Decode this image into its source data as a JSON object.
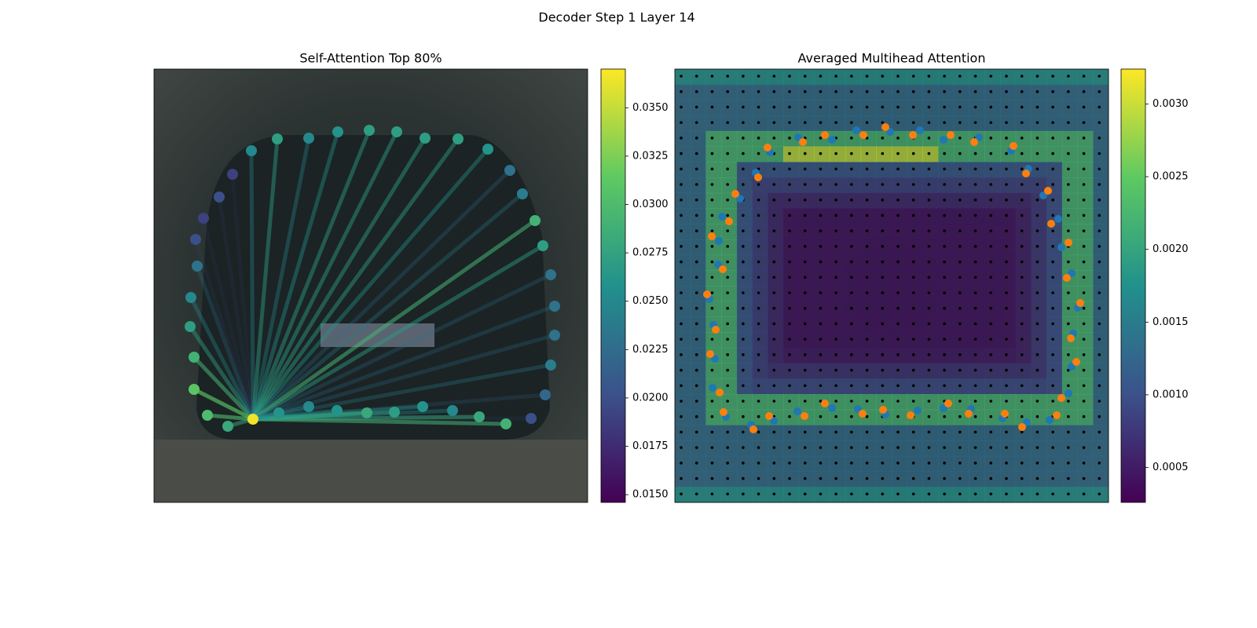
{
  "title": "Decoder Step 1 Layer 14",
  "chart_data": [
    {
      "type": "attention-graph",
      "title": "Self-Attention Top 80%",
      "values": [
        0.031,
        0.029,
        0.027,
        0.025,
        0.023,
        0.02,
        0.019,
        0.02,
        0.019,
        0.025,
        0.027,
        0.025,
        0.026,
        0.027,
        0.027,
        0.027,
        0.027,
        0.026,
        0.023,
        0.024,
        0.029,
        0.027,
        0.023,
        0.023,
        0.023,
        0.024,
        0.022,
        0.02,
        0.029,
        0.028,
        0.025,
        0.026,
        0.027,
        0.028,
        0.026,
        0.025,
        0.026,
        0.0365,
        0.028,
        0.03
      ],
      "colormap": "viridis",
      "ylim": [
        0.0146,
        0.037
      ],
      "yticks": [
        {
          "value": 0.015,
          "label": "0.0150"
        },
        0.0175,
        {
          "value": 0.02,
          "label": "0.0200"
        },
        0.0225,
        {
          "value": 0.025,
          "label": "0.0250"
        },
        0.0275,
        {
          "value": 0.03,
          "label": "0.0300"
        },
        0.0325,
        {
          "value": 0.035,
          "label": "0.0350"
        }
      ]
    },
    {
      "type": "attention-heatmap",
      "title": "Averaged Multihead Attention",
      "colormap": "viridis",
      "ylim": [
        0.00026,
        0.00324
      ],
      "yticks": [
        0.0005,
        {
          "value": 0.001,
          "label": "0.0010"
        },
        0.0015,
        {
          "value": 0.002,
          "label": "0.0020"
        },
        0.0025,
        {
          "value": 0.003,
          "label": "0.0030"
        }
      ]
    }
  ]
}
